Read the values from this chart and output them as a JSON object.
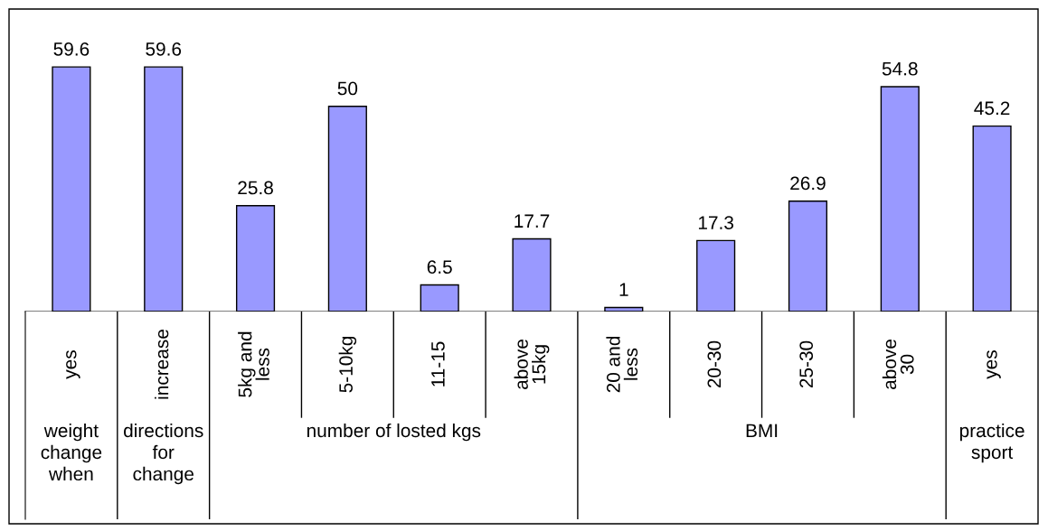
{
  "chart_data": {
    "type": "bar",
    "categories": [
      "yes",
      "increase",
      "5kg and\nless",
      "5-10kg",
      "11-15",
      "above\n15kg",
      "20 and\nless",
      "20-30",
      "25-30",
      "above\n30",
      "yes"
    ],
    "values": [
      59.6,
      59.6,
      25.8,
      50,
      6.5,
      17.7,
      1,
      17.3,
      26.9,
      54.8,
      45.2
    ],
    "color": "#9999ff",
    "data_labels": true,
    "annotations": [
      "weight\nchange\nwhen",
      "directions\nfor\nchange",
      "number of losted kgs",
      "BMI",
      "practice\nsport"
    ]
  }
}
